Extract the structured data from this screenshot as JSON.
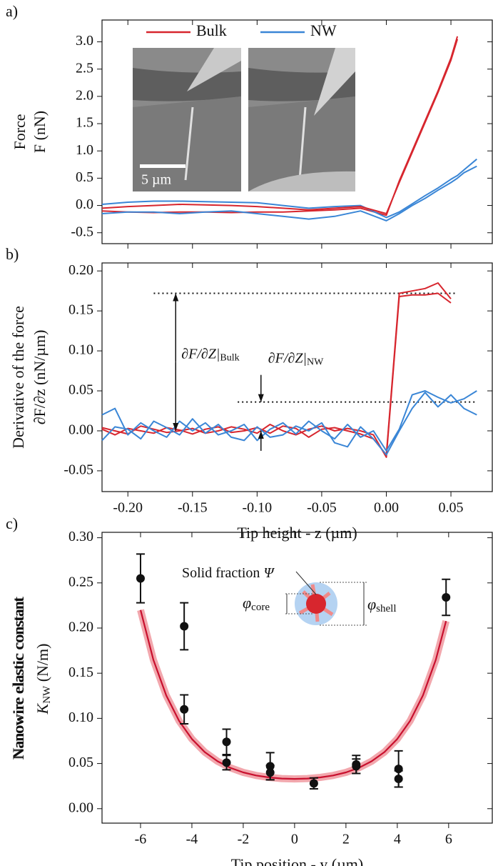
{
  "chart_data": [
    {
      "type": "line",
      "label": "a)",
      "ylabel": [
        "Force",
        "F (nN)"
      ],
      "inset_scale": "5 µm",
      "xlim": [
        -0.22,
        0.082
      ],
      "ylim": [
        -0.7,
        3.4
      ],
      "xticks": [
        -0.2,
        -0.15,
        -0.1,
        -0.05,
        0,
        0.05
      ],
      "xtick_labels": false,
      "yticks": [
        -0.5,
        {
          "value": 0,
          "label": "0.0"
        },
        0.5,
        {
          "value": 1,
          "label": "1.0"
        },
        1.5,
        {
          "value": 2,
          "label": "2.0"
        },
        2.5,
        {
          "value": 3,
          "label": "3.0"
        }
      ],
      "x": [
        -0.22,
        -0.2,
        -0.18,
        -0.16,
        -0.14,
        -0.12,
        -0.1,
        -0.08,
        -0.06,
        -0.04,
        -0.02,
        0,
        0.01,
        0.02,
        0.03,
        0.04,
        0.05,
        0.055,
        0.06,
        0.07
      ],
      "series": [
        {
          "name": "Bulk",
          "color": "#d7262e",
          "values": [
            -0.1,
            -0.12,
            -0.13,
            -0.12,
            -0.12,
            -0.13,
            -0.12,
            -0.12,
            -0.1,
            -0.08,
            -0.05,
            -0.18,
            0.45,
            1.0,
            1.55,
            2.1,
            2.7,
            3.1,
            null,
            null
          ]
        },
        {
          "name": "NW",
          "color": "#3a86d6",
          "values": [
            0.02,
            0.06,
            0.08,
            0.08,
            0.07,
            0.06,
            0.05,
            0.0,
            -0.05,
            -0.02,
            0.0,
            -0.22,
            -0.12,
            0.03,
            0.18,
            0.32,
            0.48,
            0.55,
            0.65,
            0.85
          ]
        },
        {
          "name": "Bulk",
          "color": "#d7262e",
          "values": [
            -0.05,
            -0.02,
            0.0,
            0.02,
            0.01,
            0.0,
            -0.02,
            -0.05,
            -0.08,
            -0.05,
            -0.02,
            -0.15,
            0.42,
            0.97,
            1.52,
            2.07,
            2.66,
            3.05,
            null,
            null
          ]
        },
        {
          "name": "NW",
          "color": "#3a86d6",
          "values": [
            -0.15,
            -0.12,
            -0.12,
            -0.15,
            -0.12,
            -0.1,
            -0.15,
            -0.2,
            -0.25,
            -0.2,
            -0.1,
            -0.28,
            -0.15,
            0.0,
            0.13,
            0.28,
            0.42,
            0.5,
            0.6,
            0.72
          ]
        }
      ]
    },
    {
      "type": "line",
      "label": "b)",
      "ylabel": [
        "Derivative of the force",
        "∂F/∂z (nN/µm)"
      ],
      "xlabel": "Tip height - z (µm)",
      "xlim": [
        -0.22,
        0.082
      ],
      "ylim": [
        -0.076,
        0.21
      ],
      "xticks": [
        {
          "value": -0.2,
          "label": "-0.20"
        },
        -0.15,
        {
          "value": -0.1,
          "label": "-0.10"
        },
        -0.05,
        {
          "value": 0,
          "label": "0.00"
        },
        0.05
      ],
      "xtick_labels": true,
      "yticks": [
        -0.05,
        {
          "value": 0,
          "label": "0.00"
        },
        0.05,
        {
          "value": 0.1,
          "label": "0.10"
        },
        0.15,
        {
          "value": 0.2,
          "label": "0.20"
        }
      ],
      "x": [
        -0.22,
        -0.21,
        -0.2,
        -0.19,
        -0.18,
        -0.17,
        -0.16,
        -0.15,
        -0.14,
        -0.13,
        -0.12,
        -0.11,
        -0.1,
        -0.09,
        -0.08,
        -0.07,
        -0.06,
        -0.05,
        -0.04,
        -0.03,
        -0.02,
        -0.01,
        0,
        0.01,
        0.02,
        0.03,
        0.04,
        0.05,
        0.06,
        0.07
      ],
      "series": [
        {
          "name": "Bulk",
          "color": "#d7262e",
          "values": [
            0.002,
            -0.005,
            0.003,
            0.0,
            -0.003,
            0.004,
            0.001,
            -0.004,
            0.002,
            0.005,
            -0.002,
            0.0,
            0.004,
            -0.003,
            0.006,
            0.003,
            -0.008,
            0.002,
            0.004,
            0.0,
            -0.004,
            -0.01,
            -0.03,
            0.172,
            0.175,
            0.178,
            0.185,
            0.165,
            null,
            null
          ]
        },
        {
          "name": "Bulk",
          "color": "#d7262e",
          "values": [
            0.004,
            0.0,
            -0.004,
            0.006,
            0.002,
            -0.002,
            0.0,
            0.003,
            -0.003,
            0.0,
            0.005,
            0.002,
            -0.003,
            0.008,
            0.0,
            -0.005,
            0.002,
            0.006,
            0.0,
            0.003,
            0.0,
            -0.005,
            -0.033,
            0.168,
            0.17,
            0.17,
            0.172,
            0.16,
            null,
            null
          ]
        },
        {
          "name": "NW",
          "color": "#3a86d6",
          "values": [
            0.02,
            0.028,
            -0.005,
            0.01,
            0.0,
            -0.008,
            0.012,
            0.0,
            0.01,
            -0.005,
            0.0,
            0.008,
            -0.012,
            0.002,
            0.01,
            -0.004,
            0.012,
            0.0,
            -0.01,
            0.008,
            -0.008,
            0.0,
            -0.025,
            0.002,
            0.045,
            0.05,
            0.042,
            0.035,
            0.04,
            0.05
          ]
        },
        {
          "name": "NW",
          "color": "#3a86d6",
          "values": [
            -0.012,
            0.005,
            0.002,
            -0.01,
            0.012,
            0.004,
            -0.005,
            0.015,
            -0.003,
            0.008,
            -0.008,
            -0.012,
            0.005,
            -0.008,
            -0.005,
            0.006,
            0.0,
            0.01,
            -0.015,
            -0.02,
            0.005,
            -0.01,
            -0.03,
            0.0,
            0.028,
            0.048,
            0.03,
            0.045,
            0.028,
            0.02
          ]
        }
      ],
      "levels": [
        {
          "y": 0.172,
          "x": [
            -0.18,
            0.055
          ]
        },
        {
          "y": 0.036,
          "x": [
            -0.115,
            0.07
          ]
        }
      ],
      "annotations": [
        {
          "label": "∂F/∂Z|",
          "sub": "Bulk",
          "x": -0.163,
          "y": [
            0,
            0.172
          ]
        },
        {
          "label": "∂F/∂Z|",
          "sub": "NW",
          "x": -0.097,
          "y": [
            0,
            0.036
          ]
        }
      ]
    },
    {
      "type": "scatter",
      "label": "c)",
      "ylabel": [
        "Nanowire elastic constant"
      ],
      "ylabel_k": "K",
      "ylabel_sub": "NW",
      "ylabel_unit": " (N/m)",
      "xlabel": "Tip position - y (µm)",
      "inset": {
        "text": "Solid fraction",
        "symbol": "Ψ",
        "core": "φ",
        "core_sub": "core",
        "shell": "φ",
        "shell_sub": "shell"
      },
      "xlim": [
        -7.5,
        7.7
      ],
      "ylim": [
        -0.016,
        0.306
      ],
      "xticks": [
        -6,
        -4,
        -2,
        0,
        2,
        4,
        6
      ],
      "xtick_labels": true,
      "yticks": [
        {
          "value": 0,
          "label": "0.00"
        },
        0.05,
        {
          "value": 0.1,
          "label": "0.10"
        },
        0.15,
        {
          "value": 0.2,
          "label": "0.20"
        },
        0.25,
        {
          "value": 0.3,
          "label": "0.30"
        }
      ],
      "x": [
        -6,
        -4.3,
        -4.3,
        -2.65,
        -2.65,
        -0.95,
        -0.95,
        0.75,
        2.4,
        2.4,
        4.05,
        4.05,
        5.9
      ],
      "values": [
        0.255,
        0.202,
        0.11,
        0.074,
        0.051,
        0.047,
        0.04,
        0.028,
        0.049,
        0.047,
        0.044,
        0.033,
        0.234
      ],
      "errors": [
        0.027,
        0.026,
        0.016,
        0.014,
        0.008,
        0.015,
        0.008,
        0.006,
        0.01,
        0.008,
        0.02,
        0.009,
        0.02
      ],
      "color": "#111111",
      "fit_color": "#c8102e",
      "fit_band_color": "#f2a7ad",
      "fit_x": [
        -6,
        -5.5,
        -5,
        -4.5,
        -4,
        -3.5,
        -3,
        -2.5,
        -2,
        -1.5,
        -1,
        -0.5,
        0,
        0.5,
        1,
        1.5,
        2,
        2.5,
        3,
        3.5,
        4,
        4.5,
        5,
        5.5,
        5.9
      ],
      "fit_values": [
        0.22,
        0.1648,
        0.1254,
        0.0972,
        0.0771,
        0.0627,
        0.0525,
        0.0452,
        0.0402,
        0.0368,
        0.0346,
        0.0334,
        0.033,
        0.0334,
        0.0346,
        0.0368,
        0.0402,
        0.0452,
        0.0525,
        0.0627,
        0.0771,
        0.0972,
        0.1254,
        0.1648,
        0.2077
      ]
    }
  ]
}
